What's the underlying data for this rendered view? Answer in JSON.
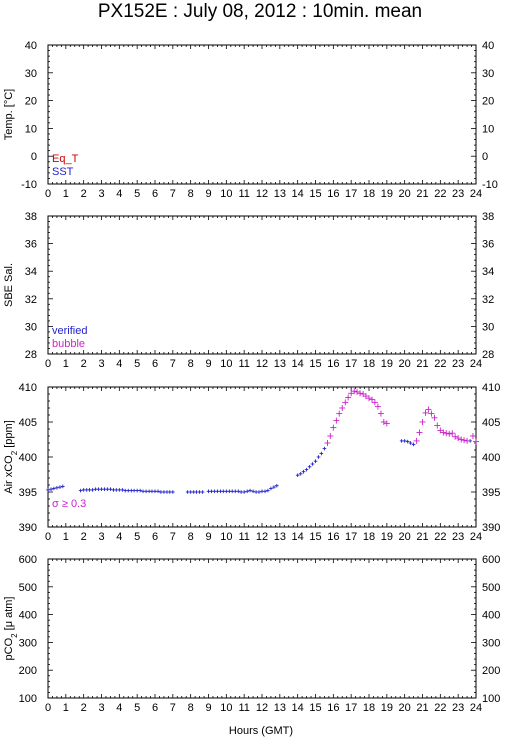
{
  "title": "PX152E : July 08, 2012 : 10min. mean",
  "colors": {
    "red": "#cc0000",
    "blue": "#2222cc",
    "magenta": "#cc22cc",
    "frame": "#000000"
  },
  "chart_data": [
    {
      "type": "scatter",
      "id": "temp",
      "ylabel": "Temp. [°C]",
      "ylim": [
        -10,
        40
      ],
      "yticks": [
        -10,
        0,
        10,
        20,
        30,
        40
      ],
      "xlim": [
        0,
        24
      ],
      "legend": [
        "Eq_T",
        "SST"
      ],
      "legend_colors": [
        "#cc0000",
        "#2222cc"
      ],
      "series": []
    },
    {
      "type": "scatter",
      "id": "sal",
      "ylabel": "SBE Sal.",
      "ylim": [
        28,
        38
      ],
      "yticks": [
        28,
        30,
        32,
        34,
        36,
        38
      ],
      "xlim": [
        0,
        24
      ],
      "legend": [
        "verified",
        "bubble"
      ],
      "legend_colors": [
        "#2222cc",
        "#cc22cc"
      ],
      "series": []
    },
    {
      "type": "scatter",
      "id": "xco2",
      "ylabel": "Air xCO2 [ppm]",
      "ylim": [
        390,
        410
      ],
      "yticks": [
        390,
        395,
        400,
        405,
        410
      ],
      "xlim": [
        0,
        24
      ],
      "legend": [
        "σ ≥ 0.3"
      ],
      "legend_colors": [
        "#cc22cc"
      ],
      "series": [
        {
          "color": "#2222cc",
          "marker": "small",
          "points": [
            [
              0.0,
              395.3
            ],
            [
              0.17,
              395.4
            ],
            [
              0.33,
              395.5
            ],
            [
              0.5,
              395.6
            ],
            [
              0.67,
              395.7
            ],
            [
              0.83,
              395.8
            ],
            [
              1.83,
              395.2
            ],
            [
              2.0,
              395.3
            ],
            [
              2.17,
              395.3
            ],
            [
              2.33,
              395.3
            ],
            [
              2.5,
              395.3
            ],
            [
              2.67,
              395.4
            ],
            [
              2.83,
              395.4
            ],
            [
              3.0,
              395.4
            ],
            [
              3.17,
              395.4
            ],
            [
              3.33,
              395.4
            ],
            [
              3.5,
              395.4
            ],
            [
              3.67,
              395.3
            ],
            [
              3.83,
              395.3
            ],
            [
              4.0,
              395.3
            ],
            [
              4.17,
              395.3
            ],
            [
              4.33,
              395.2
            ],
            [
              4.5,
              395.2
            ],
            [
              4.67,
              395.2
            ],
            [
              4.83,
              395.2
            ],
            [
              5.0,
              395.2
            ],
            [
              5.17,
              395.2
            ],
            [
              5.33,
              395.1
            ],
            [
              5.5,
              395.1
            ],
            [
              5.67,
              395.1
            ],
            [
              5.83,
              395.1
            ],
            [
              6.0,
              395.1
            ],
            [
              6.17,
              395.1
            ],
            [
              6.33,
              395.0
            ],
            [
              6.5,
              395.0
            ],
            [
              6.67,
              395.0
            ],
            [
              6.83,
              395.0
            ],
            [
              7.0,
              395.0
            ],
            [
              7.83,
              395.0
            ],
            [
              8.0,
              395.0
            ],
            [
              8.17,
              395.0
            ],
            [
              8.33,
              395.0
            ],
            [
              8.5,
              395.0
            ],
            [
              8.67,
              395.0
            ],
            [
              9.0,
              395.1
            ],
            [
              9.17,
              395.1
            ],
            [
              9.33,
              395.1
            ],
            [
              9.5,
              395.1
            ],
            [
              9.67,
              395.1
            ],
            [
              9.83,
              395.1
            ],
            [
              10.0,
              395.1
            ],
            [
              10.17,
              395.1
            ],
            [
              10.33,
              395.1
            ],
            [
              10.5,
              395.1
            ],
            [
              10.67,
              395.1
            ],
            [
              10.83,
              395.0
            ],
            [
              11.0,
              395.0
            ],
            [
              11.17,
              395.1
            ],
            [
              11.33,
              395.2
            ],
            [
              11.5,
              395.1
            ],
            [
              11.67,
              395.0
            ],
            [
              11.83,
              395.0
            ],
            [
              12.0,
              395.1
            ],
            [
              12.17,
              395.1
            ],
            [
              12.33,
              395.2
            ],
            [
              12.5,
              395.5
            ],
            [
              12.67,
              395.7
            ],
            [
              12.83,
              395.9
            ],
            [
              14.0,
              397.4
            ],
            [
              14.17,
              397.6
            ],
            [
              14.33,
              397.9
            ],
            [
              14.5,
              398.2
            ],
            [
              14.67,
              398.6
            ],
            [
              14.83,
              399.0
            ],
            [
              15.0,
              399.4
            ],
            [
              15.17,
              400.0
            ],
            [
              15.33,
              400.5
            ],
            [
              15.5,
              401.2
            ],
            [
              19.83,
              402.3
            ],
            [
              20.0,
              402.3
            ],
            [
              20.17,
              402.2
            ],
            [
              20.33,
              402.0
            ],
            [
              20.5,
              401.8
            ],
            [
              23.67,
              402.3
            ]
          ]
        },
        {
          "color": "#cc22cc",
          "marker": "large",
          "points": [
            [
              15.67,
              402.0
            ],
            [
              15.83,
              403.0
            ],
            [
              16.0,
              404.2
            ],
            [
              16.17,
              405.2
            ],
            [
              16.33,
              406.2
            ],
            [
              16.5,
              407.0
            ],
            [
              16.67,
              407.8
            ],
            [
              16.83,
              408.5
            ],
            [
              17.0,
              409.1
            ],
            [
              17.17,
              409.4
            ],
            [
              17.33,
              409.3
            ],
            [
              17.5,
              409.1
            ],
            [
              17.67,
              409.0
            ],
            [
              17.83,
              408.7
            ],
            [
              18.0,
              408.4
            ],
            [
              18.17,
              408.2
            ],
            [
              18.33,
              407.8
            ],
            [
              18.5,
              407.2
            ],
            [
              18.67,
              406.2
            ],
            [
              18.83,
              405.0
            ],
            [
              19.0,
              404.8
            ],
            [
              20.67,
              402.3
            ],
            [
              20.83,
              403.5
            ],
            [
              21.0,
              405.0
            ],
            [
              21.17,
              406.3
            ],
            [
              21.33,
              406.8
            ],
            [
              21.5,
              406.2
            ],
            [
              21.67,
              405.6
            ],
            [
              21.83,
              404.5
            ],
            [
              22.0,
              403.8
            ],
            [
              22.17,
              403.5
            ],
            [
              22.33,
              403.4
            ],
            [
              22.5,
              403.3
            ],
            [
              22.67,
              403.4
            ],
            [
              22.83,
              402.9
            ],
            [
              23.0,
              402.7
            ],
            [
              23.17,
              402.5
            ],
            [
              23.33,
              402.4
            ],
            [
              23.5,
              402.3
            ],
            [
              23.83,
              403.0
            ],
            [
              24.0,
              402.2
            ]
          ]
        }
      ]
    },
    {
      "type": "scatter",
      "id": "pco2",
      "ylabel": "pCO2 [μ atm]",
      "ylim": [
        100,
        600
      ],
      "yticks": [
        100,
        200,
        300,
        400,
        500,
        600
      ],
      "xlim": [
        0,
        24
      ],
      "series": []
    }
  ],
  "xaxis": {
    "label": "Hours (GMT)",
    "ticks": [
      0,
      1,
      2,
      3,
      4,
      5,
      6,
      7,
      8,
      9,
      10,
      11,
      12,
      13,
      14,
      15,
      16,
      17,
      18,
      19,
      20,
      21,
      22,
      23,
      24
    ]
  }
}
